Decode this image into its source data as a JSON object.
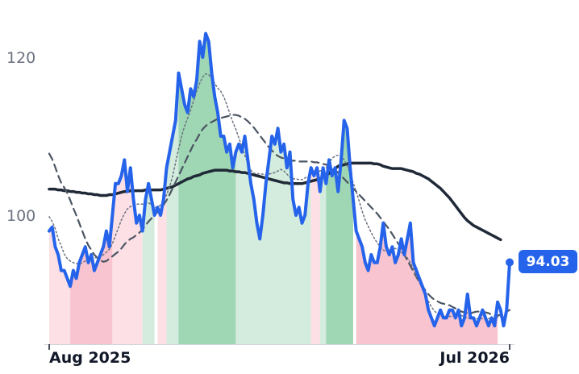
{
  "chart_data": {
    "type": "line",
    "title": "",
    "xlabel": "",
    "ylabel": "",
    "x_ticks": [
      "Aug 2025",
      "Jul 2026"
    ],
    "x_range": [
      "2025-07-15",
      "2026-07-25"
    ],
    "y_ticks": [
      100,
      120
    ],
    "ylim": [
      83.5,
      126.5
    ],
    "grid": false,
    "legend": "none",
    "last_value_label": "94.03",
    "series": [
      {
        "key": "price",
        "color": "#2563eb",
        "values": [
          98,
          98.5,
          96,
          95,
          93,
          93,
          92,
          91,
          93,
          92,
          94,
          95,
          96,
          94,
          95,
          93,
          94,
          95,
          96,
          98,
          96,
          100,
          104,
          104,
          105,
          107,
          103,
          106,
          102,
          99,
          100,
          98,
          102,
          104,
          102,
          100,
          101,
          100,
          102,
          106,
          108,
          110,
          112,
          118,
          116,
          114,
          113,
          116,
          115,
          117,
          122,
          120,
          123,
          122,
          118,
          115,
          113,
          110,
          110,
          108,
          109,
          106,
          108,
          109,
          108,
          110,
          107,
          104,
          102,
          99,
          97,
          100,
          104,
          107,
          110,
          109,
          111,
          108,
          109,
          106,
          108,
          102,
          100,
          101,
          99,
          100,
          104,
          106,
          105,
          106,
          103,
          106,
          104,
          107,
          105,
          106,
          103,
          107,
          112,
          111,
          106,
          102,
          98,
          97,
          96,
          94,
          93,
          95,
          94,
          94,
          96,
          99,
          96,
          95,
          96,
          94,
          95,
          97,
          95,
          97,
          99,
          94,
          93,
          92,
          91,
          90,
          88,
          87,
          86,
          87,
          88,
          87,
          87,
          88,
          88,
          87,
          88,
          86,
          87,
          90,
          87,
          87,
          86,
          87,
          88,
          87,
          86,
          87,
          86,
          89,
          88,
          86,
          88,
          94.03
        ]
      },
      {
        "key": "sma-short",
        "color": "#6b7280",
        "style": "dotted",
        "values": [
          99.8,
          99.2,
          98.3,
          97.0,
          96.1,
          95.1,
          94.5,
          94.2,
          94.0,
          93.9,
          93.8,
          94.0,
          94.2,
          94.4,
          94.5,
          94.6,
          94.6,
          94.7,
          95.0,
          95.3,
          95.7,
          96.4,
          97.4,
          98.4,
          99.4,
          100.2,
          100.8,
          101.1,
          101.2,
          101.4,
          101.4,
          101.4,
          101.5,
          101.6,
          101.3,
          101.0,
          101.0,
          101.3,
          101.8,
          102.6,
          103.6,
          104.9,
          106.7,
          108.4,
          110.0,
          111.3,
          112.3,
          113.3,
          114.5,
          115.7,
          116.7,
          117.5,
          117.9,
          117.8,
          117.3,
          116.7,
          116.1,
          115.7,
          115.0,
          114.0,
          112.9,
          111.8,
          110.9,
          109.8,
          108.7,
          107.6,
          106.6,
          105.7,
          105.3,
          105.3,
          105.2,
          105.2,
          105.1,
          105.2,
          105.3,
          105.4,
          105.6,
          105.8,
          105.6,
          105.2,
          104.8,
          104.6,
          104.6,
          104.5,
          104.5,
          104.7,
          104.9,
          105.2,
          105.4,
          105.5,
          105.6,
          105.8,
          106.0,
          106.6,
          107.2,
          107.5,
          107.6,
          107.5,
          107.0,
          106.3,
          105.3,
          104.1,
          103.0,
          101.8,
          100.5,
          99.4,
          98.6,
          97.8,
          97.1,
          96.5,
          96.0,
          95.6,
          95.4,
          95.5,
          95.7,
          95.8,
          95.6,
          95.3,
          95.0,
          94.6,
          94.0,
          93.2,
          92.3,
          91.5,
          90.6,
          89.8,
          89.1,
          88.4,
          87.9,
          87.5,
          87.3,
          87.2,
          87.2,
          87.2,
          87.2,
          87.3,
          87.4,
          87.3,
          87.1,
          87.0,
          86.9,
          86.9,
          86.9,
          86.9,
          86.9,
          86.8,
          86.9,
          87.0,
          87.0,
          87.1,
          87.2,
          87.4
        ]
      },
      {
        "key": "sma-mid",
        "color": "#4b5563",
        "style": "dashed",
        "values": [
          107.8,
          107.1,
          106.1,
          105.0,
          104.1,
          103.5,
          102.8,
          101.9,
          100.9,
          100.0,
          99.0,
          98.0,
          97.0,
          96.2,
          95.6,
          95.0,
          94.6,
          94.3,
          94.1,
          94.2,
          94.5,
          94.8,
          95.1,
          95.4,
          95.8,
          96.3,
          96.7,
          97.0,
          97.2,
          97.5,
          97.8,
          98.2,
          98.7,
          99.2,
          99.6,
          100.0,
          100.4,
          100.8,
          101.3,
          101.9,
          102.6,
          103.4,
          104.2,
          105.0,
          105.8,
          106.6,
          107.4,
          108.2,
          109.0,
          109.6,
          110.3,
          110.9,
          111.3,
          111.6,
          111.8,
          112.0,
          112.2,
          112.3,
          112.4,
          112.5,
          112.6,
          112.7,
          112.7,
          112.6,
          112.4,
          112.2,
          111.9,
          111.5,
          111.1,
          110.6,
          110.1,
          109.6,
          109.1,
          108.6,
          108.2,
          107.8,
          107.5,
          107.3,
          107.2,
          107.1,
          107.0,
          106.9,
          106.9,
          106.8,
          106.8,
          106.8,
          106.8,
          106.8,
          106.7,
          106.7,
          106.6,
          106.5,
          106.4,
          106.2,
          106.0,
          105.7,
          105.4,
          105.0,
          104.6,
          104.2,
          103.8,
          103.4,
          103.0,
          102.6,
          102.2,
          101.8,
          101.4,
          101.0,
          100.6,
          100.2,
          99.7,
          99.2,
          98.7,
          98.2,
          97.6,
          97.0,
          96.4,
          95.7,
          95.0,
          94.3,
          93.6,
          92.9,
          92.2,
          91.5,
          91.0,
          90.5,
          90.0,
          89.6,
          89.3,
          89.1,
          88.9,
          88.8,
          88.7,
          88.6,
          88.4,
          88.2,
          88.0,
          87.8,
          87.7,
          87.6,
          87.6,
          87.7,
          87.8,
          87.8,
          87.8,
          87.7,
          87.6,
          87.4,
          87.3,
          87.3,
          87.4,
          87.6,
          87.8,
          88.0
        ]
      },
      {
        "key": "sma-long",
        "color": "#1f2937",
        "style": "solid",
        "values": [
          103.3,
          103.3,
          103.3,
          103.2,
          103.2,
          103.1,
          103.1,
          103.0,
          103.0,
          102.9,
          102.9,
          102.8,
          102.8,
          102.7,
          102.7,
          102.6,
          102.6,
          102.5,
          102.5,
          102.5,
          102.6,
          102.6,
          102.7,
          102.8,
          102.9,
          103.0,
          103.0,
          103.1,
          103.1,
          103.1,
          103.1,
          103.1,
          103.2,
          103.2,
          103.2,
          103.2,
          103.2,
          103.2,
          103.3,
          103.4,
          103.5,
          103.6,
          103.8,
          104.0,
          104.2,
          104.4,
          104.6,
          104.7,
          104.9,
          105.0,
          105.1,
          105.3,
          105.4,
          105.5,
          105.6,
          105.7,
          105.7,
          105.7,
          105.7,
          105.7,
          105.6,
          105.6,
          105.5,
          105.5,
          105.4,
          105.4,
          105.3,
          105.2,
          105.1,
          105.0,
          104.9,
          104.8,
          104.7,
          104.6,
          104.5,
          104.4,
          104.3,
          104.2,
          104.1,
          104.1,
          104.0,
          104.0,
          104.0,
          104.0,
          104.0,
          104.1,
          104.2,
          104.3,
          104.4,
          104.5,
          104.6,
          104.8,
          105.0,
          105.3,
          105.6,
          105.9,
          106.2,
          106.3,
          106.4,
          106.5,
          106.6,
          106.6,
          106.6,
          106.6,
          106.6,
          106.6,
          106.6,
          106.6,
          106.5,
          106.5,
          106.4,
          106.2,
          106.1,
          106.0,
          105.9,
          105.9,
          105.9,
          105.9,
          105.8,
          105.7,
          105.6,
          105.5,
          105.3,
          105.2,
          105.0,
          104.8,
          104.6,
          104.3,
          104.0,
          103.7,
          103.4,
          103.0,
          102.6,
          102.2,
          101.7,
          101.2,
          100.7,
          100.2,
          99.7,
          99.3,
          99.0,
          98.7,
          98.5,
          98.3,
          98.1,
          97.9,
          97.7,
          97.5,
          97.3,
          97.1,
          96.9
        ]
      }
    ],
    "regions": [
      {
        "from": 0,
        "to": 7,
        "signal": "bear-weak"
      },
      {
        "from": 7,
        "to": 21,
        "signal": "bear"
      },
      {
        "from": 21,
        "to": 31,
        "signal": "bear-weak"
      },
      {
        "from": 31,
        "to": 35,
        "signal": "bull-weak"
      },
      {
        "from": 35,
        "to": 36,
        "signal": "none"
      },
      {
        "from": 36,
        "to": 39,
        "signal": "bear-weak"
      },
      {
        "from": 39,
        "to": 43,
        "signal": "bull-weak"
      },
      {
        "from": 43,
        "to": 62,
        "signal": "bull"
      },
      {
        "from": 62,
        "to": 87,
        "signal": "bull-weak"
      },
      {
        "from": 87,
        "to": 90,
        "signal": "bear-weak"
      },
      {
        "from": 90,
        "to": 92,
        "signal": "bull-weak"
      },
      {
        "from": 92,
        "to": 101,
        "signal": "bull"
      },
      {
        "from": 101,
        "to": 102,
        "signal": "none"
      },
      {
        "from": 102,
        "to": 149,
        "signal": "bear"
      }
    ],
    "region_colors": {
      "bull": "#9fd6b3",
      "bull-weak": "#d3ecdd",
      "bear": "#f8c4cf",
      "bear-weak": "#fde0e5"
    }
  }
}
